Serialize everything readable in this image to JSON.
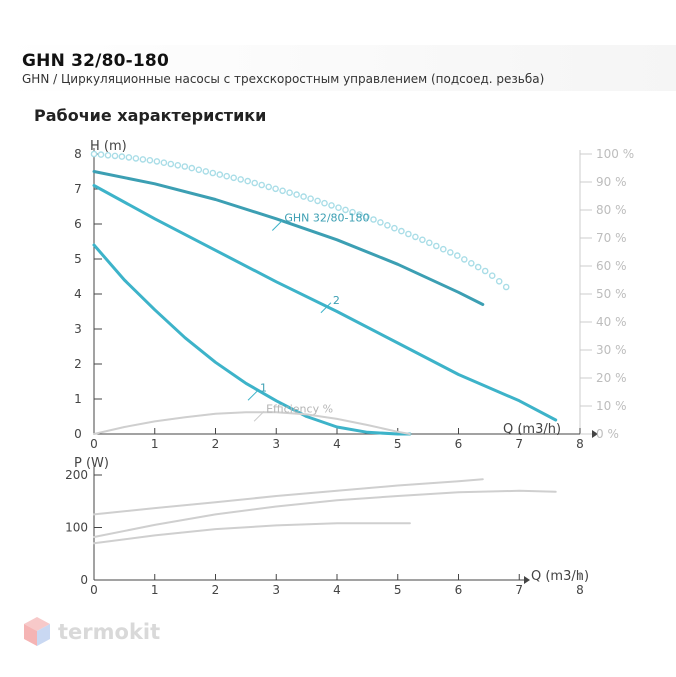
{
  "header": {
    "title": "GHN 32/80-180",
    "subtitle": "GHN / Циркуляционные насосы с трехскоростным управлением (подсоед. резьба)"
  },
  "section": {
    "title": "Рабочие характеристики"
  },
  "logo": {
    "text": "termokit",
    "icon": "cube-logo-icon"
  },
  "colors": {
    "curve": "#3db3c9",
    "curve_top": "#3c9fb3",
    "efficiency_dots": "#a9dde7",
    "efficiency_curve": "#cfcfcf",
    "power_curves": "#cfcfcf",
    "axis": "#444444",
    "right_axis_text": "#bdbdbd"
  },
  "chart_data": [
    {
      "type": "line",
      "xlabel": "Q (m3/h)",
      "ylabel": "H (m)",
      "y2label": "",
      "xlim": [
        0,
        8
      ],
      "ylim": [
        0,
        8
      ],
      "y2lim": [
        0,
        100
      ],
      "x_ticks": [
        "0",
        "1",
        "2",
        "3",
        "4",
        "5",
        "6",
        "7",
        "8"
      ],
      "y_ticks": [
        "0",
        "1",
        "2",
        "3",
        "4",
        "5",
        "6",
        "7",
        "8"
      ],
      "y2_ticks": [
        "0 %",
        "10 %",
        "20 %",
        "30 %",
        "40 %",
        "50 %",
        "60 %",
        "70 %",
        "80 %",
        "90 %",
        "100 %"
      ],
      "series": [
        {
          "name": "GHN 32/80-180",
          "role": "speed3",
          "x": [
            0,
            1,
            2,
            3,
            4,
            5,
            6,
            6.4
          ],
          "y": [
            7.5,
            7.15,
            6.7,
            6.15,
            5.55,
            4.85,
            4.05,
            3.7
          ]
        },
        {
          "name": "2",
          "role": "speed2",
          "x": [
            0,
            1,
            2,
            3,
            4,
            5,
            6,
            7,
            7.6
          ],
          "y": [
            7.1,
            6.15,
            5.25,
            4.35,
            3.5,
            2.6,
            1.7,
            0.95,
            0.4
          ]
        },
        {
          "name": "1",
          "role": "speed1",
          "x": [
            0,
            0.5,
            1,
            1.5,
            2,
            2.5,
            3,
            3.5,
            4,
            4.5,
            5,
            5.2
          ],
          "y": [
            5.4,
            4.4,
            3.55,
            2.75,
            2.05,
            1.45,
            0.95,
            0.5,
            0.2,
            0.05,
            0,
            0
          ]
        },
        {
          "name": "Efficiency %",
          "role": "efficiency",
          "axis": "y2",
          "x": [
            0,
            0.5,
            1,
            1.5,
            2,
            2.5,
            3,
            3.5,
            4,
            4.5,
            5,
            5.2
          ],
          "y": [
            0,
            2.5,
            4.5,
            6,
            7.2,
            7.8,
            7.8,
            7,
            5.4,
            3.2,
            0.8,
            0
          ]
        },
        {
          "name": "",
          "role": "efficiency-dotted",
          "axis": "y2",
          "x": [
            0,
            0.5,
            1,
            1.5,
            2,
            2.5,
            3,
            3.5,
            4,
            4.5,
            5,
            5.5,
            6,
            6.5,
            6.9
          ],
          "y": [
            100,
            99,
            97.5,
            95.5,
            93,
            90.5,
            87.5,
            84.5,
            81,
            77.5,
            73,
            68.5,
            63.5,
            57.5,
            50.5
          ]
        }
      ],
      "labels": [
        {
          "text": "GHN 32/80-180",
          "series": "speed3",
          "x": 3.1,
          "y": 6.1
        },
        {
          "text": "2",
          "series": "speed2",
          "x": 3.9,
          "y": 3.75
        },
        {
          "text": "1",
          "series": "speed1",
          "x": 2.7,
          "y": 1.25
        },
        {
          "text": "Efficiency %",
          "series": "efficiency",
          "x": 2.8,
          "y": 0.65
        }
      ]
    },
    {
      "type": "line",
      "xlabel": "Q (m3/h)",
      "ylabel": "P (W)",
      "xlim": [
        0,
        8
      ],
      "ylim": [
        0,
        200
      ],
      "x_ticks": [
        "0",
        "1",
        "2",
        "3",
        "4",
        "5",
        "6",
        "7",
        "8"
      ],
      "y_ticks": [
        "0",
        "100",
        "200"
      ],
      "series": [
        {
          "name": "",
          "role": "power-speed3",
          "x": [
            0,
            1,
            2,
            3,
            4,
            5,
            6,
            6.4
          ],
          "y": [
            125,
            137,
            148,
            160,
            170,
            180,
            188,
            192
          ]
        },
        {
          "name": "",
          "role": "power-speed2",
          "x": [
            0,
            1,
            2,
            3,
            4,
            5,
            6,
            7,
            7.6
          ],
          "y": [
            82,
            105,
            125,
            140,
            152,
            160,
            167,
            170,
            168
          ]
        },
        {
          "name": "",
          "role": "power-speed1",
          "x": [
            0,
            1,
            2,
            3,
            4,
            5,
            5.2
          ],
          "y": [
            70,
            85,
            97,
            104,
            108,
            108,
            108
          ]
        }
      ]
    }
  ]
}
